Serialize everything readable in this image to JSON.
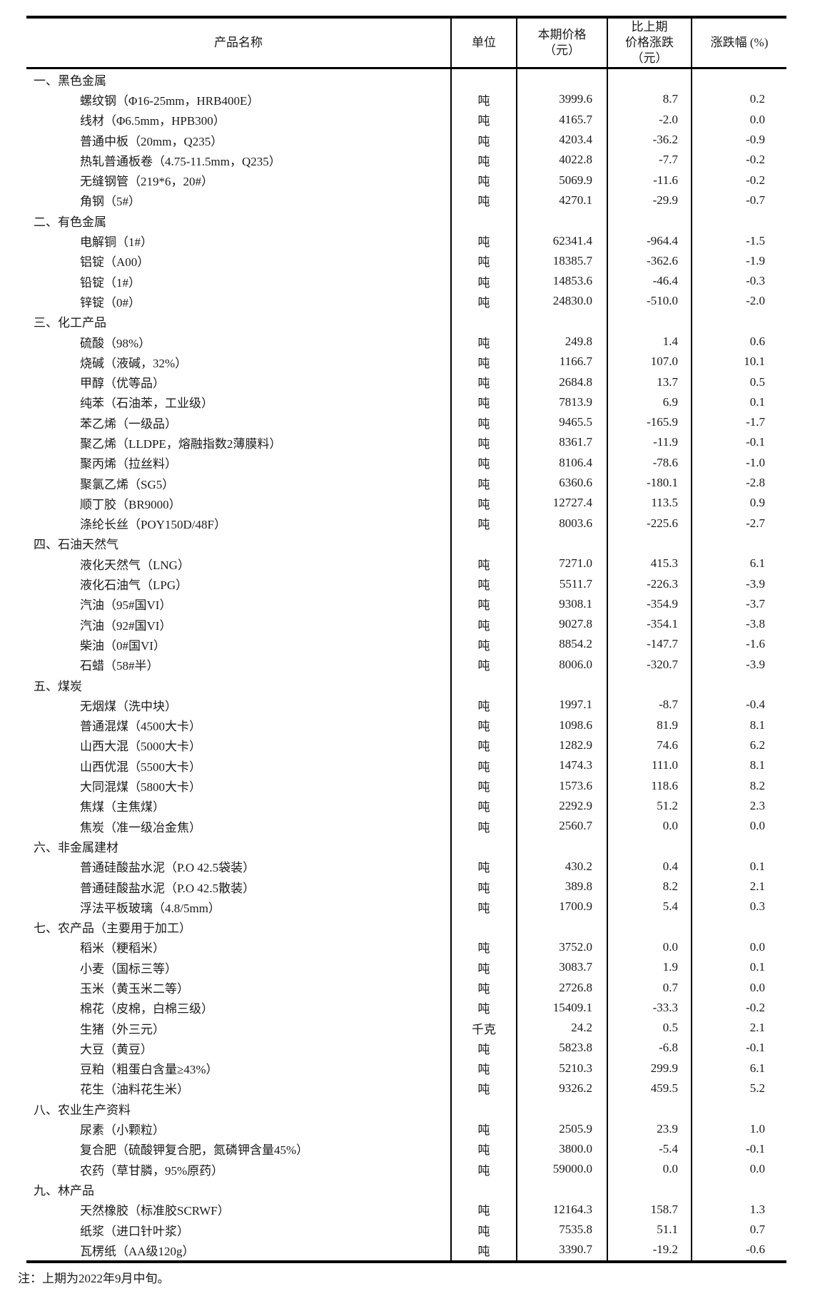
{
  "table": {
    "headers": {
      "product": "产品名称",
      "unit": "单位",
      "price": [
        "本期价格",
        "（元）"
      ],
      "change": [
        "比上期",
        "价格涨跌",
        "（元）"
      ],
      "pct": "涨跌幅 (%)"
    },
    "sections": [
      {
        "title": "一、黑色金属",
        "rows": [
          {
            "name": "螺纹钢（Φ16-25mm，HRB400E）",
            "unit": "吨",
            "price": "3999.6",
            "change": "8.7",
            "pct": "0.2"
          },
          {
            "name": "线材（Φ6.5mm，HPB300）",
            "unit": "吨",
            "price": "4165.7",
            "change": "-2.0",
            "pct": "0.0"
          },
          {
            "name": "普通中板（20mm，Q235）",
            "unit": "吨",
            "price": "4203.4",
            "change": "-36.2",
            "pct": "-0.9"
          },
          {
            "name": "热轧普通板卷（4.75-11.5mm，Q235）",
            "unit": "吨",
            "price": "4022.8",
            "change": "-7.7",
            "pct": "-0.2"
          },
          {
            "name": "无缝钢管（219*6，20#）",
            "unit": "吨",
            "price": "5069.9",
            "change": "-11.6",
            "pct": "-0.2"
          },
          {
            "name": "角钢（5#）",
            "unit": "吨",
            "price": "4270.1",
            "change": "-29.9",
            "pct": "-0.7"
          }
        ]
      },
      {
        "title": "二、有色金属",
        "rows": [
          {
            "name": "电解铜（1#）",
            "unit": "吨",
            "price": "62341.4",
            "change": "-964.4",
            "pct": "-1.5"
          },
          {
            "name": "铝锭（A00）",
            "unit": "吨",
            "price": "18385.7",
            "change": "-362.6",
            "pct": "-1.9"
          },
          {
            "name": "铅锭（1#）",
            "unit": "吨",
            "price": "14853.6",
            "change": "-46.4",
            "pct": "-0.3"
          },
          {
            "name": "锌锭（0#）",
            "unit": "吨",
            "price": "24830.0",
            "change": "-510.0",
            "pct": "-2.0"
          }
        ]
      },
      {
        "title": "三、化工产品",
        "rows": [
          {
            "name": "硫酸（98%）",
            "unit": "吨",
            "price": "249.8",
            "change": "1.4",
            "pct": "0.6"
          },
          {
            "name": "烧碱（液碱，32%）",
            "unit": "吨",
            "price": "1166.7",
            "change": "107.0",
            "pct": "10.1"
          },
          {
            "name": "甲醇（优等品）",
            "unit": "吨",
            "price": "2684.8",
            "change": "13.7",
            "pct": "0.5"
          },
          {
            "name": "纯苯（石油苯，工业级）",
            "unit": "吨",
            "price": "7813.9",
            "change": "6.9",
            "pct": "0.1"
          },
          {
            "name": "苯乙烯（一级品）",
            "unit": "吨",
            "price": "9465.5",
            "change": "-165.9",
            "pct": "-1.7"
          },
          {
            "name": "聚乙烯（LLDPE，熔融指数2薄膜料）",
            "unit": "吨",
            "price": "8361.7",
            "change": "-11.9",
            "pct": "-0.1"
          },
          {
            "name": "聚丙烯（拉丝料）",
            "unit": "吨",
            "price": "8106.4",
            "change": "-78.6",
            "pct": "-1.0"
          },
          {
            "name": "聚氯乙烯（SG5）",
            "unit": "吨",
            "price": "6360.6",
            "change": "-180.1",
            "pct": "-2.8"
          },
          {
            "name": "顺丁胶（BR9000）",
            "unit": "吨",
            "price": "12727.4",
            "change": "113.5",
            "pct": "0.9"
          },
          {
            "name": "涤纶长丝（POY150D/48F）",
            "unit": "吨",
            "price": "8003.6",
            "change": "-225.6",
            "pct": "-2.7"
          }
        ]
      },
      {
        "title": "四、石油天然气",
        "rows": [
          {
            "name": "液化天然气（LNG）",
            "unit": "吨",
            "price": "7271.0",
            "change": "415.3",
            "pct": "6.1"
          },
          {
            "name": "液化石油气（LPG）",
            "unit": "吨",
            "price": "5511.7",
            "change": "-226.3",
            "pct": "-3.9"
          },
          {
            "name": "汽油（95#国VI）",
            "unit": "吨",
            "price": "9308.1",
            "change": "-354.9",
            "pct": "-3.7"
          },
          {
            "name": "汽油（92#国VI）",
            "unit": "吨",
            "price": "9027.8",
            "change": "-354.1",
            "pct": "-3.8"
          },
          {
            "name": "柴油（0#国VI）",
            "unit": "吨",
            "price": "8854.2",
            "change": "-147.7",
            "pct": "-1.6"
          },
          {
            "name": "石蜡（58#半）",
            "unit": "吨",
            "price": "8006.0",
            "change": "-320.7",
            "pct": "-3.9"
          }
        ]
      },
      {
        "title": "五、煤炭",
        "rows": [
          {
            "name": "无烟煤（洗中块）",
            "unit": "吨",
            "price": "1997.1",
            "change": "-8.7",
            "pct": "-0.4"
          },
          {
            "name": "普通混煤（4500大卡）",
            "unit": "吨",
            "price": "1098.6",
            "change": "81.9",
            "pct": "8.1"
          },
          {
            "name": "山西大混（5000大卡）",
            "unit": "吨",
            "price": "1282.9",
            "change": "74.6",
            "pct": "6.2"
          },
          {
            "name": "山西优混（5500大卡）",
            "unit": "吨",
            "price": "1474.3",
            "change": "111.0",
            "pct": "8.1"
          },
          {
            "name": "大同混煤（5800大卡）",
            "unit": "吨",
            "price": "1573.6",
            "change": "118.6",
            "pct": "8.2"
          },
          {
            "name": "焦煤（主焦煤）",
            "unit": "吨",
            "price": "2292.9",
            "change": "51.2",
            "pct": "2.3"
          },
          {
            "name": "焦炭（准一级冶金焦）",
            "unit": "吨",
            "price": "2560.7",
            "change": "0.0",
            "pct": "0.0"
          }
        ]
      },
      {
        "title": "六、非金属建材",
        "rows": [
          {
            "name": "普通硅酸盐水泥（P.O 42.5袋装）",
            "unit": "吨",
            "price": "430.2",
            "change": "0.4",
            "pct": "0.1"
          },
          {
            "name": "普通硅酸盐水泥（P.O 42.5散装）",
            "unit": "吨",
            "price": "389.8",
            "change": "8.2",
            "pct": "2.1"
          },
          {
            "name": "浮法平板玻璃（4.8/5mm）",
            "unit": "吨",
            "price": "1700.9",
            "change": "5.4",
            "pct": "0.3"
          }
        ]
      },
      {
        "title": "七、农产品（主要用于加工）",
        "rows": [
          {
            "name": "稻米（粳稻米）",
            "unit": "吨",
            "price": "3752.0",
            "change": "0.0",
            "pct": "0.0"
          },
          {
            "name": "小麦（国标三等）",
            "unit": "吨",
            "price": "3083.7",
            "change": "1.9",
            "pct": "0.1"
          },
          {
            "name": "玉米（黄玉米二等）",
            "unit": "吨",
            "price": "2726.8",
            "change": "0.7",
            "pct": "0.0"
          },
          {
            "name": "棉花（皮棉，白棉三级）",
            "unit": "吨",
            "price": "15409.1",
            "change": "-33.3",
            "pct": "-0.2"
          },
          {
            "name": "生猪（外三元）",
            "unit": "千克",
            "price": "24.2",
            "change": "0.5",
            "pct": "2.1"
          },
          {
            "name": "大豆（黄豆）",
            "unit": "吨",
            "price": "5823.8",
            "change": "-6.8",
            "pct": "-0.1"
          },
          {
            "name": "豆粕（粗蛋白含量≥43%）",
            "unit": "吨",
            "price": "5210.3",
            "change": "299.9",
            "pct": "6.1"
          },
          {
            "name": "花生（油料花生米）",
            "unit": "吨",
            "price": "9326.2",
            "change": "459.5",
            "pct": "5.2"
          }
        ]
      },
      {
        "title": "八、农业生产资料",
        "rows": [
          {
            "name": "尿素（小颗粒）",
            "unit": "吨",
            "price": "2505.9",
            "change": "23.9",
            "pct": "1.0"
          },
          {
            "name": "复合肥（硫酸钾复合肥，氮磷钾含量45%）",
            "unit": "吨",
            "price": "3800.0",
            "change": "-5.4",
            "pct": "-0.1"
          },
          {
            "name": "农药（草甘膦，95%原药）",
            "unit": "吨",
            "price": "59000.0",
            "change": "0.0",
            "pct": "0.0"
          }
        ]
      },
      {
        "title": "九、林产品",
        "rows": [
          {
            "name": "天然橡胶（标准胶SCRWF）",
            "unit": "吨",
            "price": "12164.3",
            "change": "158.7",
            "pct": "1.3"
          },
          {
            "name": "纸浆（进口针叶浆）",
            "unit": "吨",
            "price": "7535.8",
            "change": "51.1",
            "pct": "0.7"
          },
          {
            "name": "瓦楞纸（AA级120g）",
            "unit": "吨",
            "price": "3390.7",
            "change": "-19.2",
            "pct": "-0.6"
          }
        ]
      }
    ],
    "footnote": "注：上期为2022年9月中旬。"
  }
}
